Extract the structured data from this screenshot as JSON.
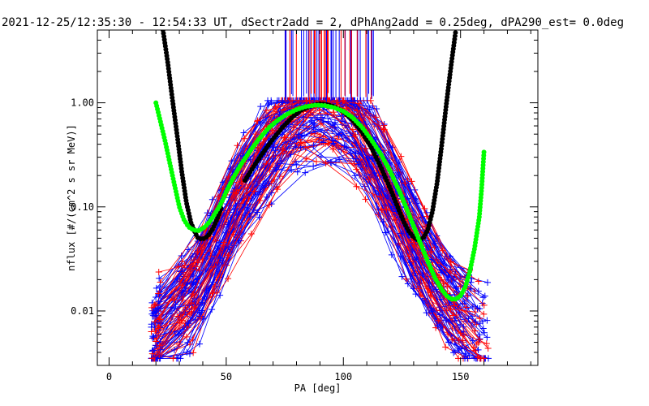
{
  "chart_data": {
    "type": "line",
    "title": "2021-12-25/12:35:30 - 12:54:33 UT, dSectr2add = 2, dPhAng2add = 0.25deg, dPA290_est=   0.0deg",
    "xlabel": "PA [deg]",
    "ylabel": "nflux [#/(cm^2 s sr MeV)]",
    "xlim": [
      -5,
      183
    ],
    "ylim": [
      0.003,
      5.0
    ],
    "yscale": "log",
    "xticks": [
      0,
      50,
      100,
      150
    ],
    "xtick_labels": [
      "0",
      "50",
      "100",
      "150"
    ],
    "yticks": [
      0.01,
      0.1,
      1.0
    ],
    "ytick_labels": [
      "0.01",
      "0.10",
      "1.00"
    ],
    "colors": {
      "blue": "#0000ff",
      "red": "#ff0000",
      "black_fit": "#000000",
      "green_fit": "#00ff00"
    },
    "envelope": {
      "pa": [
        20,
        37,
        55,
        70,
        80,
        90,
        100,
        110,
        122,
        137,
        150,
        160
      ],
      "flux": [
        0.006,
        0.015,
        0.12,
        0.45,
        0.8,
        0.93,
        0.85,
        0.4,
        0.12,
        0.02,
        0.009,
        0.006
      ]
    },
    "series": [
      {
        "color": "black",
        "x": [
          23,
          25,
          27,
          29,
          31,
          33,
          35,
          37,
          38,
          40,
          42,
          44,
          46,
          48
        ],
        "y": [
          5.0,
          2.5,
          1.1,
          0.5,
          0.22,
          0.11,
          0.07,
          0.055,
          0.05,
          0.049,
          0.052,
          0.06,
          0.075,
          0.1
        ]
      },
      {
        "color": "black",
        "x": [
          58,
          62,
          66,
          70,
          74,
          78,
          82,
          86,
          88,
          90,
          92,
          94,
          96,
          100,
          104,
          108,
          112,
          116,
          120,
          124,
          126,
          128,
          130,
          132,
          134,
          136,
          138,
          140,
          142,
          144,
          146,
          148
        ],
        "y": [
          0.18,
          0.25,
          0.34,
          0.45,
          0.58,
          0.72,
          0.85,
          0.93,
          0.96,
          0.98,
          0.97,
          0.95,
          0.92,
          0.82,
          0.68,
          0.52,
          0.37,
          0.24,
          0.15,
          0.09,
          0.07,
          0.058,
          0.051,
          0.048,
          0.05,
          0.06,
          0.09,
          0.17,
          0.4,
          1.0,
          2.3,
          5.0
        ]
      },
      {
        "color": "green",
        "x": [
          20,
          22,
          24,
          26,
          28,
          30,
          32,
          34,
          36,
          38,
          40,
          42,
          44,
          46,
          48,
          50,
          53,
          56,
          60,
          64,
          68,
          72,
          76,
          80,
          84,
          88,
          92,
          96,
          100,
          104,
          108,
          112,
          116,
          120,
          124,
          128,
          132,
          136,
          139,
          142,
          144,
          146,
          148,
          150,
          152,
          154,
          156,
          158,
          159,
          160
        ],
        "y": [
          1.0,
          0.65,
          0.42,
          0.26,
          0.16,
          0.1,
          0.075,
          0.064,
          0.06,
          0.059,
          0.062,
          0.068,
          0.078,
          0.092,
          0.11,
          0.14,
          0.19,
          0.25,
          0.34,
          0.45,
          0.57,
          0.68,
          0.78,
          0.86,
          0.92,
          0.95,
          0.94,
          0.9,
          0.83,
          0.72,
          0.58,
          0.44,
          0.32,
          0.22,
          0.14,
          0.085,
          0.05,
          0.03,
          0.021,
          0.016,
          0.014,
          0.013,
          0.013,
          0.014,
          0.017,
          0.024,
          0.04,
          0.08,
          0.15,
          0.34
        ]
      }
    ]
  }
}
